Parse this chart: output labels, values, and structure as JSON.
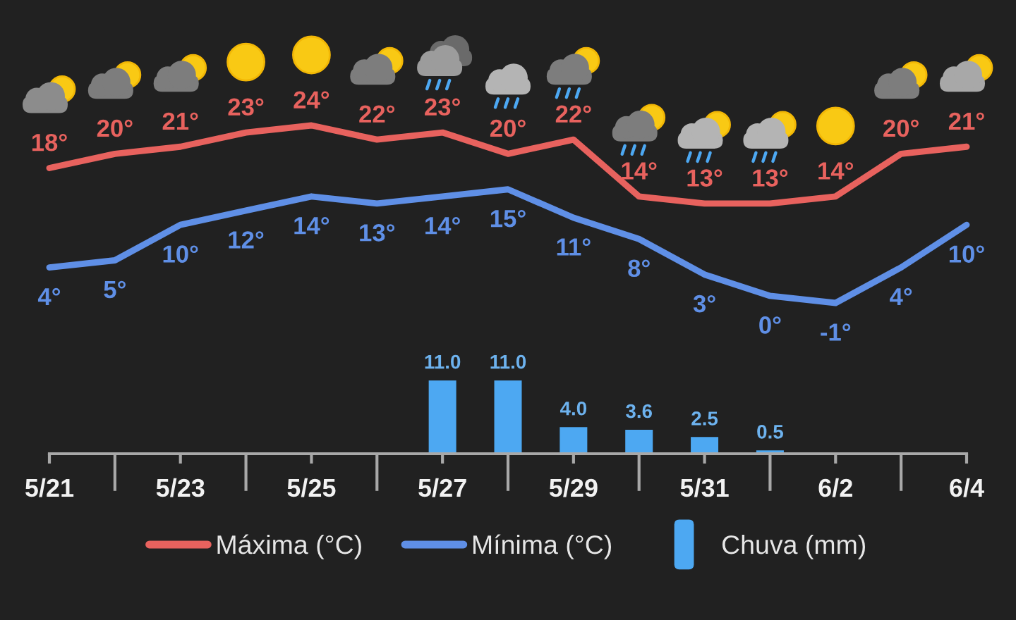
{
  "chart_data": [
    {
      "type": "line",
      "categories": [
        null,
        null,
        null,
        null,
        null,
        null,
        null,
        null,
        null,
        null,
        null,
        null,
        null,
        null,
        null
      ],
      "series": [
        {
          "name": "Máxima (°C)",
          "color": "#e8625e",
          "values": [
            18,
            20,
            21,
            23,
            24,
            22,
            23,
            20,
            22,
            14,
            13,
            13,
            14,
            20,
            21
          ],
          "value_labels": [
            "18°",
            "20°",
            "21°",
            "23°",
            "24°",
            "22°",
            "23°",
            "20°",
            "22°",
            "14°",
            "13°",
            "13°",
            "14°",
            "20°",
            "21°"
          ]
        },
        {
          "name": "Mínima (°C)",
          "color": "#5f8fe6",
          "values": [
            4,
            5,
            10,
            12,
            14,
            13,
            14,
            15,
            11,
            8,
            3,
            0,
            -1,
            4,
            10
          ],
          "value_labels": [
            "4°",
            "5°",
            "10°",
            "12°",
            "14°",
            "13°",
            "14°",
            "15°",
            "11°",
            "8°",
            "3°",
            "0°",
            "-1°",
            "4°",
            "10°"
          ]
        }
      ],
      "tick_labels": false,
      "legend": "bottom",
      "line_style": "solid"
    },
    {
      "type": "bar",
      "categories": [
        "5/21",
        null,
        "5/23",
        null,
        "5/25",
        null,
        "5/27",
        null,
        "5/29",
        null,
        "5/31",
        null,
        "6/2",
        null,
        "6/4"
      ],
      "series": [
        {
          "name": "Chuva (mm)",
          "color": "#4da8f2",
          "values": [
            null,
            null,
            null,
            null,
            null,
            null,
            11.0,
            11.0,
            4.0,
            3.6,
            2.5,
            0.5,
            null,
            null,
            null
          ],
          "value_labels": [
            null,
            null,
            null,
            null,
            null,
            null,
            "11.0",
            "11.0",
            "4.0",
            "3.6",
            "2.5",
            "0.5",
            null,
            null,
            null
          ]
        }
      ],
      "ylim": [
        0,
        11
      ],
      "tick_labels": "x",
      "legend": "bottom"
    }
  ]
}
